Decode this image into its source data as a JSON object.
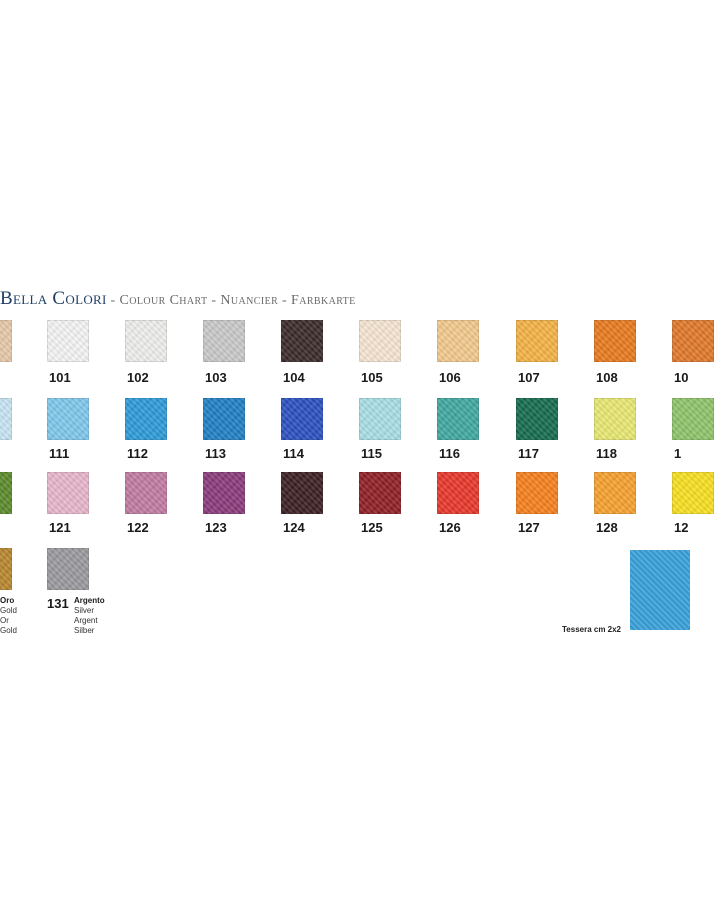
{
  "title": {
    "main": "Bella Colori",
    "sub": " - Colour Chart - Nuancier - Farbkarte"
  },
  "rows": [
    {
      "tiles": [
        {
          "code": "",
          "color": "#e7c9a8"
        },
        {
          "code": "101",
          "color": "#f4f4f4"
        },
        {
          "code": "102",
          "color": "#eeeeec"
        },
        {
          "code": "103",
          "color": "#c9c9c9"
        },
        {
          "code": "104",
          "color": "#3a2a2a"
        },
        {
          "code": "105",
          "color": "#f6e6d2"
        },
        {
          "code": "106",
          "color": "#f2c98c"
        },
        {
          "code": "107",
          "color": "#f4b244"
        },
        {
          "code": "108",
          "color": "#e87a1e"
        },
        {
          "code": "10",
          "color": "#e0782a"
        }
      ]
    },
    {
      "tiles": [
        {
          "code": "",
          "color": "#c7e5f4"
        },
        {
          "code": "111",
          "color": "#7fc8ec"
        },
        {
          "code": "112",
          "color": "#2c9ad8"
        },
        {
          "code": "113",
          "color": "#1f7fc4"
        },
        {
          "code": "114",
          "color": "#2a50c0"
        },
        {
          "code": "115",
          "color": "#a8dfe6"
        },
        {
          "code": "116",
          "color": "#3fa8a0"
        },
        {
          "code": "117",
          "color": "#146b4e"
        },
        {
          "code": "118",
          "color": "#e8e872"
        },
        {
          "code": "1",
          "color": "#8fc46a"
        }
      ]
    },
    {
      "tiles": [
        {
          "code": "",
          "color": "#5a8a2a"
        },
        {
          "code": "121",
          "color": "#e8b6cc"
        },
        {
          "code": "122",
          "color": "#c07aa2"
        },
        {
          "code": "123",
          "color": "#8a3a7a"
        },
        {
          "code": "124",
          "color": "#3a1e22"
        },
        {
          "code": "125",
          "color": "#8e1e24"
        },
        {
          "code": "126",
          "color": "#e8362a"
        },
        {
          "code": "127",
          "color": "#f6801c"
        },
        {
          "code": "128",
          "color": "#f7a02e"
        },
        {
          "code": "12",
          "color": "#f7e020"
        }
      ]
    }
  ],
  "metals": [
    {
      "code": "",
      "color": "#b8862e",
      "names": [
        "Oro",
        "Gold",
        "Or",
        "Gold"
      ]
    },
    {
      "code": "131",
      "color": "#9a9a9e",
      "names": [
        "Argento",
        "Silver",
        "Argent",
        "Silber"
      ]
    }
  ],
  "tessera": {
    "label": "Tessera cm 2x2",
    "color": "#3aa0d8"
  }
}
